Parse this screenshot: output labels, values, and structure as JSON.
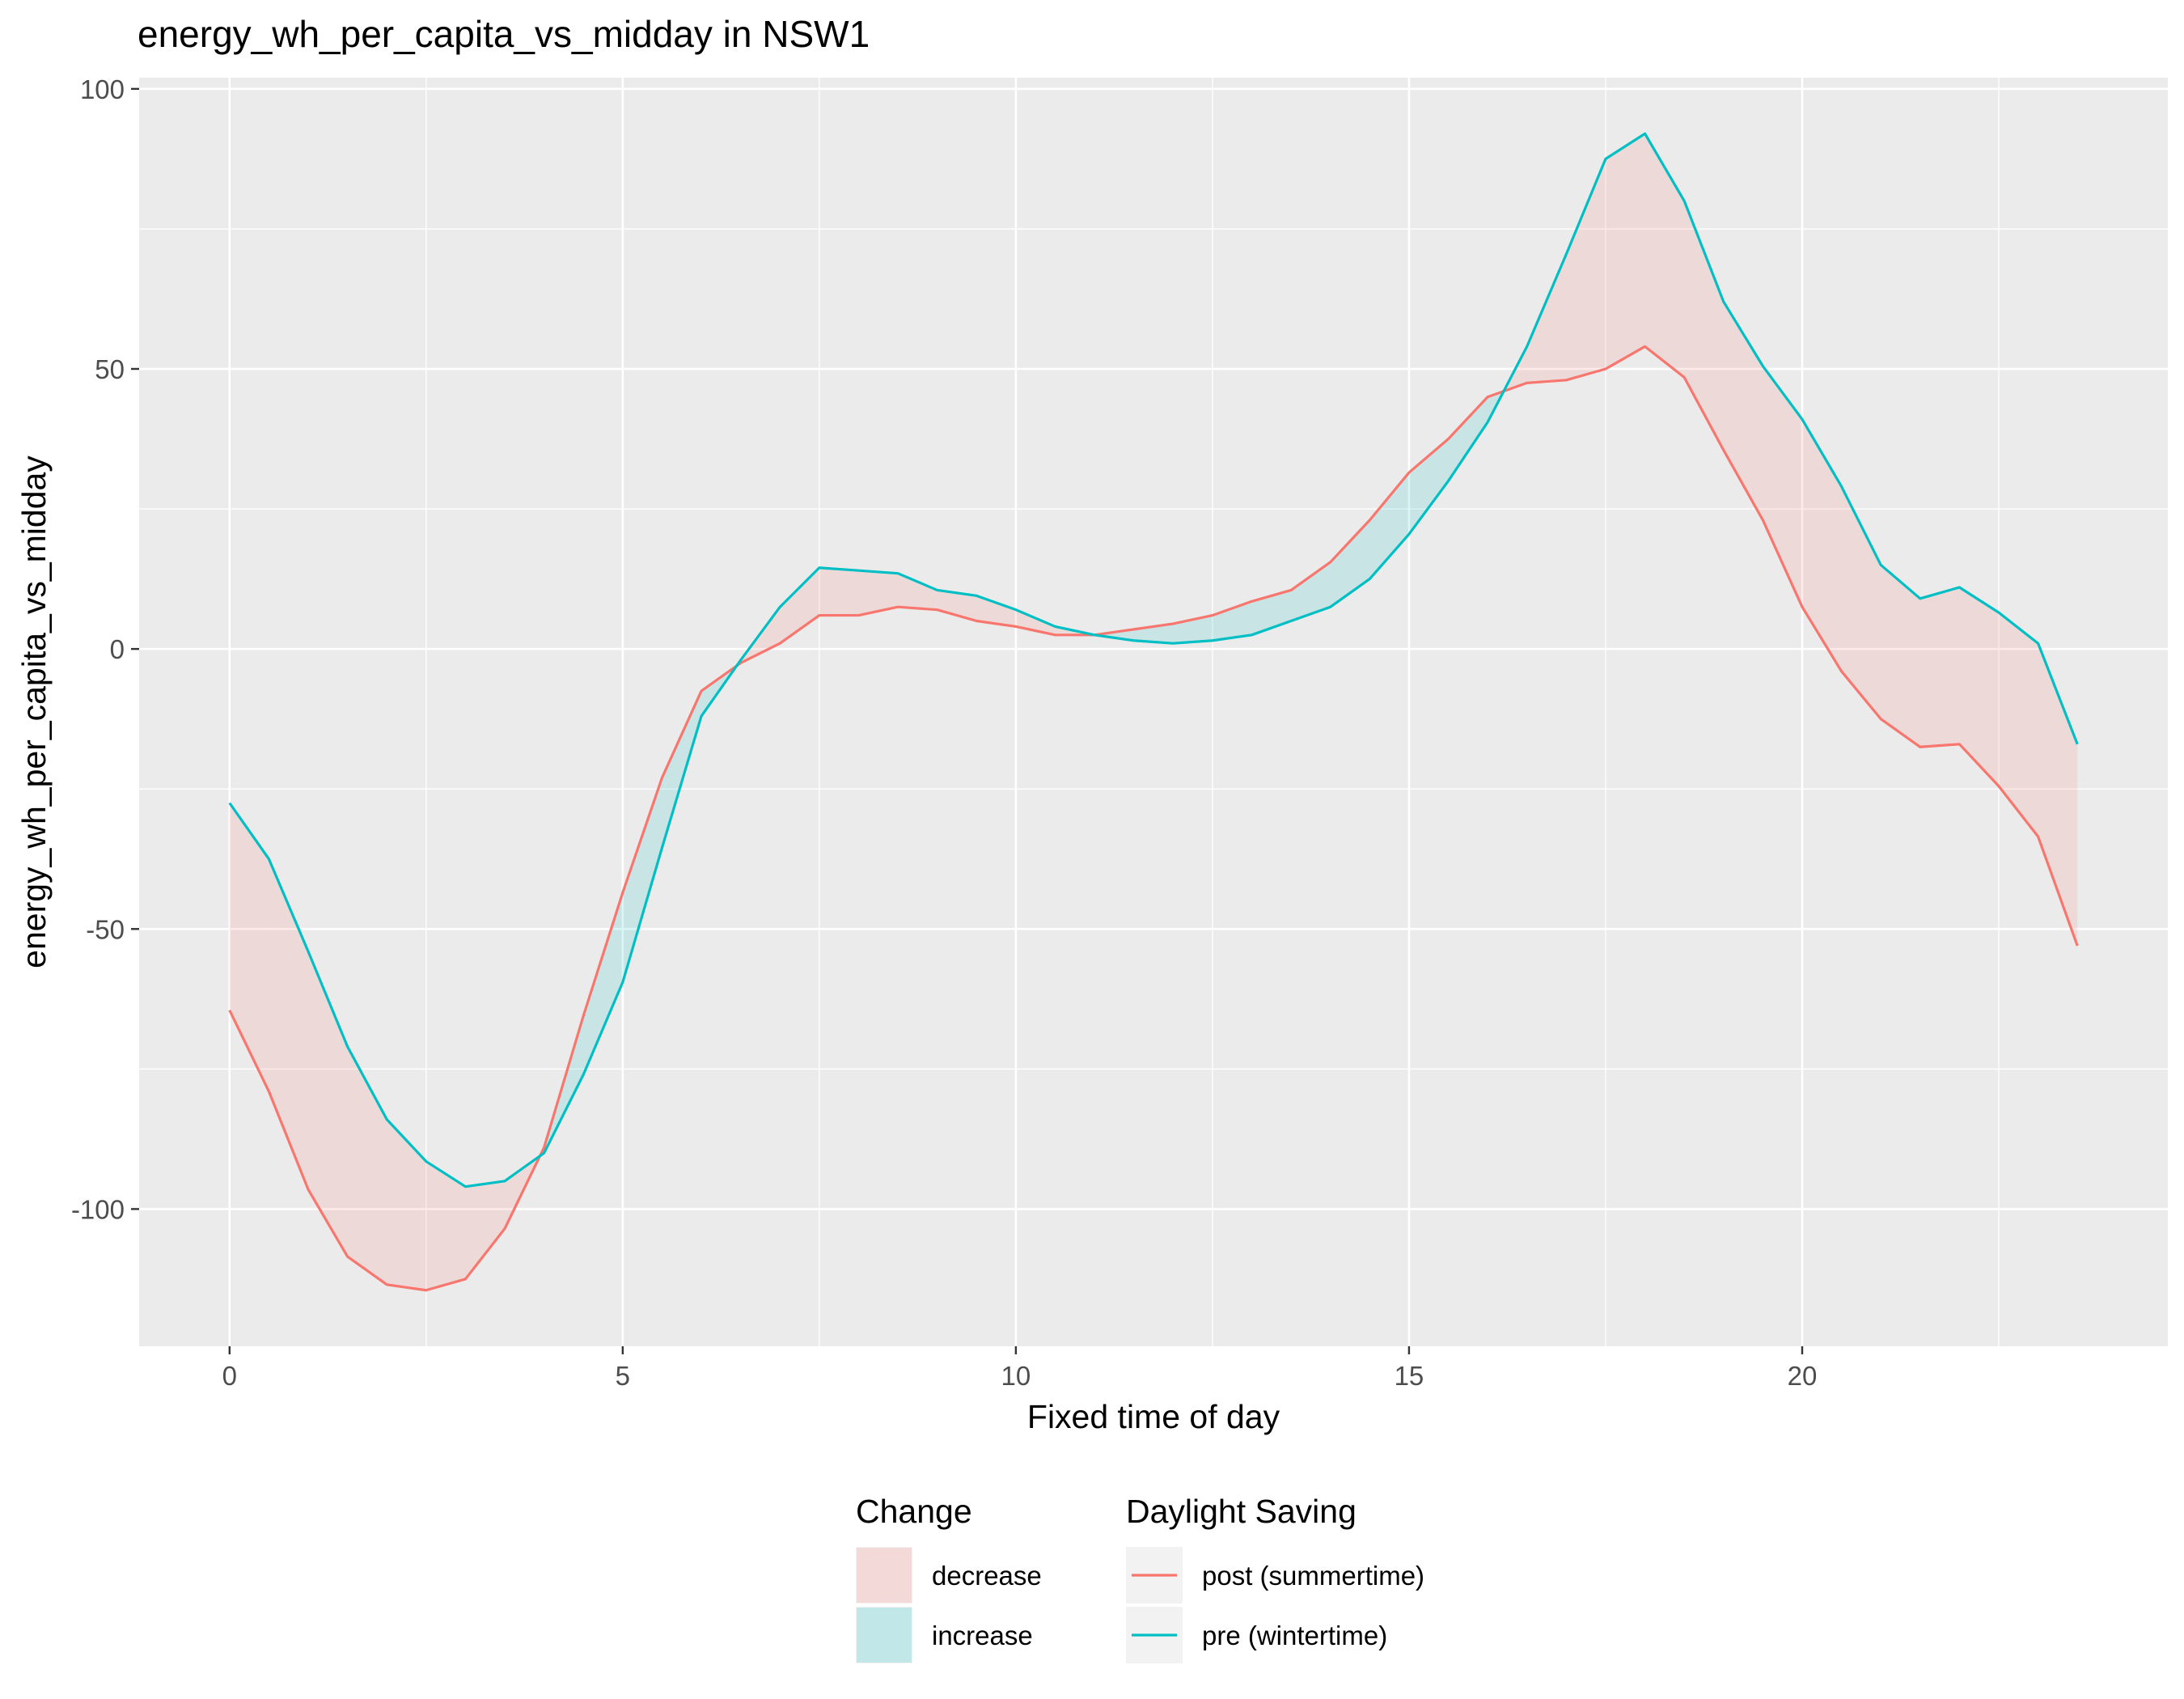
{
  "chart_data": {
    "type": "line",
    "title": "energy_wh_per_capita_vs_midday in NSW1",
    "xlabel": "Fixed time of day",
    "ylabel": "energy_wh_per_capita_vs_midday",
    "xlim": [
      -1.15,
      24.65
    ],
    "ylim": [
      -124.5,
      102
    ],
    "x_ticks": [
      0,
      5,
      10,
      15,
      20
    ],
    "x_tick_labels": [
      "0",
      "5",
      "10",
      "15",
      "20"
    ],
    "y_ticks": [
      -100,
      -50,
      0,
      50,
      100
    ],
    "y_tick_labels": [
      "-100",
      "-50",
      "0",
      "50",
      "100"
    ],
    "grid": true,
    "background": "#ebebeb",
    "x": [
      0,
      0.5,
      1,
      1.5,
      2,
      2.5,
      3,
      3.5,
      4,
      4.5,
      5,
      5.5,
      6,
      6.5,
      7,
      7.5,
      8,
      8.5,
      9,
      9.5,
      10,
      10.5,
      11,
      11.5,
      12,
      12.5,
      13,
      13.5,
      14,
      14.5,
      15,
      15.5,
      16,
      16.5,
      17,
      17.5,
      18,
      18.5,
      19,
      19.5,
      20,
      20.5,
      21,
      21.5,
      22,
      22.5,
      23,
      23.5
    ],
    "series": [
      {
        "name": "post (summertime)",
        "color": "#f8766d",
        "values": [
          -64.5,
          -79,
          -96.5,
          -108.5,
          -113.5,
          -114.5,
          -112.5,
          -103.5,
          -89,
          -65.5,
          -43.5,
          -23,
          -7.5,
          -2.5,
          1,
          6,
          6,
          7.5,
          7,
          5,
          4,
          2.5,
          2.5,
          3.5,
          4.5,
          6,
          8.5,
          10.5,
          15.5,
          23,
          31.5,
          37.5,
          45,
          47.5,
          48,
          50,
          54,
          48.5,
          35.5,
          23,
          7.5,
          -4,
          -12.5,
          -17.5,
          -17,
          -24.5,
          -33.5,
          -53
        ]
      },
      {
        "name": "pre (wintertime)",
        "color": "#00bfc4",
        "values": [
          -27.5,
          -37.5,
          -54,
          -71,
          -84,
          -91.5,
          -96,
          -95,
          -90,
          -76,
          -59.5,
          -35.5,
          -12,
          -2,
          7.5,
          14.5,
          14,
          13.5,
          10.5,
          9.5,
          7,
          4,
          2.5,
          1.5,
          1,
          1.5,
          2.5,
          5,
          7.5,
          12.5,
          20.5,
          30,
          40.5,
          54,
          70.5,
          87.5,
          92,
          80,
          62,
          50.5,
          41,
          29,
          15,
          9,
          11,
          6.5,
          1,
          -17
        ]
      }
    ],
    "ribbon": {
      "decrease_color": "#f8766d",
      "increase_color": "#00bfc4",
      "opacity": 0.15
    },
    "legend": {
      "placement": "bottom",
      "groups": [
        {
          "title": "Change",
          "entries": [
            {
              "label": "decrease",
              "kind": "fill",
              "color": "#f8766d"
            },
            {
              "label": "increase",
              "kind": "fill",
              "color": "#00bfc4"
            }
          ]
        },
        {
          "title": "Daylight Saving",
          "entries": [
            {
              "label": "post (summertime)",
              "kind": "line",
              "color": "#f8766d"
            },
            {
              "label": "pre (wintertime)",
              "kind": "line",
              "color": "#00bfc4"
            }
          ]
        }
      ]
    }
  }
}
